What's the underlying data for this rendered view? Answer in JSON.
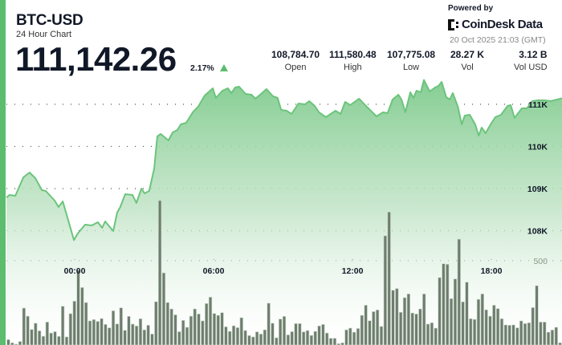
{
  "header": {
    "symbol": "BTC-USD",
    "subtitle": "24 Hour Chart",
    "price": "111,142.26",
    "change": "2.17%",
    "change_direction": "up"
  },
  "stats": [
    {
      "value": "108,784.70",
      "label": "Open"
    },
    {
      "value": "111,580.48",
      "label": "High"
    },
    {
      "value": "107,775.08",
      "label": "Low"
    },
    {
      "value": "28.27 K",
      "label": "Vol"
    },
    {
      "value": "3.12 B",
      "label": "Vol USD"
    }
  ],
  "branding": {
    "powered_by": "Powered by",
    "logo_text": "CoinDesk Data",
    "timestamp": "20 Oct 2025 21:03 (GMT)"
  },
  "colors": {
    "accent": "#5cbd6f",
    "line": "#6cc47c",
    "volume": "#6f7d6f"
  },
  "chart_data": {
    "type": "area",
    "title": "",
    "x_range": [
      "2025-10-19 21:03",
      "2025-10-20 21:03"
    ],
    "x_ticks": [
      "00:00",
      "06:00",
      "12:00",
      "18:00"
    ],
    "y_ticks": [
      {
        "value": 108000,
        "label": "108K"
      },
      {
        "value": 109000,
        "label": "109K"
      },
      {
        "value": 110000,
        "label": "110K"
      },
      {
        "value": 111000,
        "label": "111K"
      }
    ],
    "volume_ticks": [
      {
        "value": 500,
        "label": "500"
      }
    ],
    "grid": true,
    "price": {
      "t": [
        "21:03",
        "21:11",
        "21:26",
        "21:47",
        "22:03",
        "22:18",
        "22:35",
        "22:45",
        "23:08",
        "23:18",
        "23:29",
        "23:58",
        "00:08",
        "00:27",
        "00:44",
        "01:00",
        "01:11",
        "01:19",
        "01:40",
        "01:50",
        "01:58",
        "02:11",
        "02:30",
        "02:40",
        "02:53",
        "03:01",
        "03:13",
        "03:26",
        "03:34",
        "03:43",
        "04:03",
        "04:14",
        "04:26",
        "04:35",
        "04:49",
        "05:06",
        "05:20",
        "05:37",
        "05:58",
        "06:06",
        "06:23",
        "06:37",
        "06:46",
        "06:56",
        "07:06",
        "07:23",
        "07:38",
        "07:48",
        "08:03",
        "08:17",
        "08:34",
        "08:46",
        "08:55",
        "09:09",
        "09:22",
        "09:40",
        "09:57",
        "10:08",
        "10:22",
        "10:33",
        "10:51",
        "11:16",
        "11:29",
        "11:41",
        "11:54",
        "12:17",
        "12:37",
        "13:02",
        "13:19",
        "13:31",
        "13:44",
        "13:59",
        "14:07",
        "14:17",
        "14:30",
        "14:38",
        "14:46",
        "14:57",
        "15:05",
        "15:20",
        "15:34",
        "15:43",
        "15:51",
        "16:03",
        "16:12",
        "16:20",
        "16:33",
        "16:43",
        "16:51",
        "17:04",
        "17:18",
        "17:27",
        "17:35",
        "17:45",
        "17:58",
        "18:10",
        "18:25",
        "18:42",
        "18:50",
        "19:00",
        "19:19",
        "19:32",
        "19:46",
        "20:01",
        "20:17",
        "20:34",
        "21:03"
      ],
      "values": [
        108785,
        108847,
        108828,
        109266,
        109381,
        109247,
        108962,
        108943,
        108714,
        108562,
        108695,
        107775,
        107933,
        108143,
        108124,
        108200,
        108066,
        108219,
        107990,
        108428,
        108562,
        108866,
        108847,
        108657,
        109000,
        108886,
        108943,
        109476,
        110238,
        110295,
        110143,
        110333,
        110390,
        110524,
        110562,
        110810,
        110943,
        111210,
        111381,
        111152,
        111324,
        111381,
        111267,
        111400,
        111419,
        111248,
        111229,
        111133,
        111248,
        111362,
        111190,
        111152,
        110867,
        110848,
        110771,
        111019,
        111000,
        111076,
        110962,
        110810,
        110695,
        110848,
        110771,
        111057,
        110981,
        111133,
        110943,
        110714,
        110810,
        110790,
        111114,
        111229,
        111114,
        110810,
        111286,
        111152,
        111324,
        111286,
        111580,
        111305,
        111400,
        111438,
        111533,
        111171,
        111114,
        111267,
        110943,
        110524,
        110733,
        110752,
        110524,
        110257,
        110448,
        110314,
        110524,
        110695,
        110752,
        110962,
        110981,
        110676,
        110905,
        110905,
        111076,
        111095,
        111095,
        111076,
        111142
      ]
    },
    "volume": [
      32,
      13,
      5,
      21,
      219,
      171,
      92,
      129,
      84,
      52,
      136,
      71,
      79,
      51,
      230,
      48,
      186,
      260,
      444,
      341,
      252,
      143,
      151,
      140,
      157,
      122,
      102,
      203,
      125,
      221,
      87,
      170,
      124,
      113,
      156,
      90,
      117,
      65,
      257,
      857,
      428,
      252,
      214,
      179,
      79,
      146,
      105,
      171,
      214,
      184,
      143,
      246,
      284,
      187,
      176,
      192,
      108,
      81,
      114,
      103,
      162,
      86,
      56,
      48,
      78,
      65,
      90,
      248,
      129,
      43,
      154,
      170,
      60,
      79,
      127,
      127,
      78,
      86,
      57,
      81,
      113,
      122,
      71,
      40,
      40,
      8,
      13,
      90,
      100,
      76,
      98,
      176,
      236,
      144,
      198,
      208,
      110,
      648,
      789,
      325,
      335,
      194,
      281,
      303,
      190,
      184,
      214,
      303,
      124,
      132,
      100,
      400,
      482,
      479,
      275,
      392,
      628,
      256,
      373,
      156,
      152,
      271,
      303,
      209,
      171,
      236,
      216,
      156,
      119,
      117,
      119,
      102,
      143,
      127,
      132,
      222,
      352,
      136,
      136,
      76,
      89,
      105,
      13
    ]
  }
}
